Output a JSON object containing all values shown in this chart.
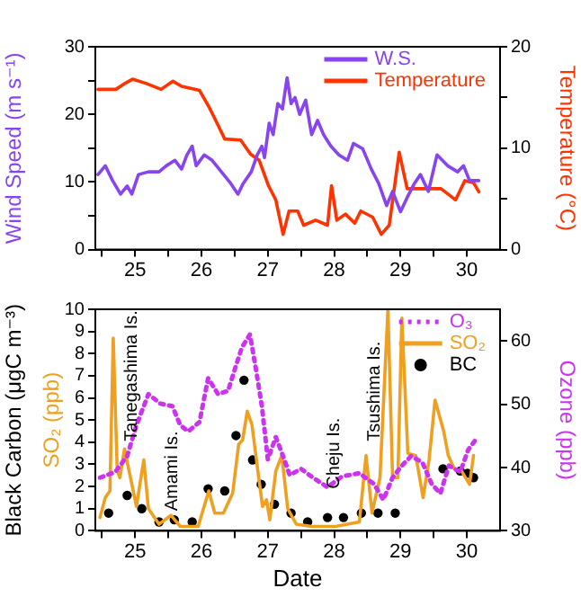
{
  "chart_data": [
    {
      "type": "line",
      "xlim": [
        24.4,
        30.5
      ],
      "xticks": [
        {
          "value": 24.5,
          "label": null
        },
        25,
        {
          "value": 25.5,
          "label": null
        },
        26,
        {
          "value": 26.5,
          "label": null
        },
        27,
        {
          "value": 27.5,
          "label": null
        },
        28,
        {
          "value": 28.5,
          "label": null
        },
        29,
        {
          "value": 29.5,
          "label": null
        },
        30
      ],
      "ylim": [
        0,
        30
      ],
      "yticks": [
        0,
        {
          "value": 5,
          "label": null
        },
        10,
        {
          "value": 15,
          "label": null
        },
        20,
        {
          "value": 25,
          "label": null
        },
        30
      ],
      "y2lim": [
        0,
        20
      ],
      "y2ticks": [
        0,
        {
          "value": 5,
          "label": null
        },
        10,
        {
          "value": 15,
          "label": null
        },
        20
      ],
      "ylabel": "Wind Speed (m s⁻¹)",
      "y2label": "Temperature (°C)",
      "legend": "top right",
      "series": [
        {
          "name": "W.S.",
          "color": "#8844ee",
          "x": [
            24.44,
            24.55,
            24.66,
            24.78,
            24.88,
            24.95,
            25.05,
            25.2,
            25.36,
            25.47,
            25.6,
            25.7,
            25.78,
            25.86,
            25.92,
            26.04,
            26.16,
            26.3,
            26.44,
            26.55,
            26.63,
            26.75,
            26.84,
            26.91,
            26.95,
            27.02,
            27.08,
            27.15,
            27.22,
            27.29,
            27.35,
            27.41,
            27.48,
            27.57,
            27.66,
            27.75,
            27.84,
            27.95,
            28.07,
            28.2,
            28.29,
            28.43,
            28.56,
            28.67,
            28.79,
            28.88,
            29.0,
            29.1,
            29.21,
            29.3,
            29.42,
            29.55,
            29.71,
            29.86,
            29.95,
            30.04,
            30.18
          ],
          "values": [
            11.1,
            12.4,
            10.2,
            8.2,
            9.4,
            8.2,
            11.1,
            11.5,
            11.5,
            12.4,
            13.2,
            11.9,
            14.0,
            15.3,
            12.4,
            14.0,
            13.2,
            11.5,
            9.8,
            8.2,
            9.8,
            11.5,
            14.0,
            15.3,
            13.6,
            18.7,
            17.0,
            21.6,
            20.8,
            25.4,
            21.6,
            22.5,
            20.0,
            22.1,
            17.0,
            19.1,
            17.0,
            15.3,
            14.0,
            13.2,
            15.7,
            14.9,
            11.9,
            9.8,
            6.5,
            8.6,
            5.6,
            7.7,
            9.8,
            11.1,
            8.6,
            14.0,
            12.4,
            11.5,
            12.4,
            10.2,
            10.2
          ]
        },
        {
          "name": "Temperature",
          "color": "#ff3300",
          "axis": "y2",
          "x": [
            24.44,
            24.71,
            24.85,
            24.96,
            25.16,
            25.39,
            25.57,
            25.7,
            25.97,
            26.11,
            26.24,
            26.35,
            26.59,
            26.74,
            26.87,
            27.01,
            27.12,
            27.23,
            27.32,
            27.45,
            27.54,
            27.72,
            27.9,
            27.96,
            28.04,
            28.17,
            28.31,
            28.4,
            28.58,
            28.71,
            28.83,
            28.98,
            29.1,
            29.2,
            29.61,
            29.83,
            29.97,
            30.1,
            30.18
          ],
          "values": [
            15.8,
            15.8,
            16.4,
            16.8,
            16.4,
            15.8,
            16.6,
            16.1,
            15.7,
            14.1,
            12.4,
            10.9,
            10.8,
            9.4,
            8.8,
            6.3,
            4.9,
            1.5,
            3.8,
            3.8,
            2.4,
            2.9,
            2.4,
            6.3,
            2.9,
            3.5,
            2.6,
            3.8,
            3.2,
            1.5,
            2.4,
            9.6,
            6.0,
            6.0,
            6.0,
            4.9,
            6.8,
            6.6,
            5.7
          ]
        }
      ]
    },
    {
      "type": "line",
      "xlim": [
        24.4,
        30.5
      ],
      "xticks": [
        {
          "value": 24.5,
          "label": null
        },
        25,
        {
          "value": 25.5,
          "label": null
        },
        26,
        {
          "value": 26.5,
          "label": null
        },
        27,
        {
          "value": 27.5,
          "label": null
        },
        28,
        {
          "value": 28.5,
          "label": null
        },
        29,
        {
          "value": 29.5,
          "label": null
        },
        30
      ],
      "ylim": [
        0,
        10
      ],
      "yticks": [
        0,
        1,
        2,
        3,
        4,
        5,
        6,
        7,
        8,
        9,
        10
      ],
      "y2lim": [
        30,
        65
      ],
      "y2ticks": [
        30,
        40,
        50,
        60
      ],
      "xlabel": "Date",
      "ylabel": "Black Carbon (μgC m⁻³)",
      "y2label": "Ozone (ppb)",
      "legend": "top right",
      "annotations": [
        "SO₂ (ppb)",
        "Tanegashima Is.",
        "Amami Is.",
        "Cheju Is.",
        "Tsushima Is."
      ],
      "series": [
        {
          "name": "O₃",
          "color": "#cc33ee",
          "axis": "y2",
          "line_style": "dotted",
          "x": [
            24.47,
            24.7,
            24.88,
            25.02,
            25.2,
            25.38,
            25.56,
            25.68,
            25.8,
            25.97,
            26.1,
            26.25,
            26.4,
            26.52,
            26.61,
            26.73,
            26.82,
            26.91,
            27.0,
            27.12,
            27.23,
            27.33,
            27.5,
            27.68,
            27.9,
            28.12,
            28.38,
            28.6,
            28.74,
            28.88,
            29.02,
            29.16,
            29.33,
            29.47,
            29.6,
            29.73,
            29.9,
            30.02,
            30.14
          ],
          "values": [
            38.4,
            39.3,
            41.8,
            46.7,
            51.6,
            50.1,
            49.7,
            46.7,
            45.7,
            47.2,
            54.1,
            51.6,
            52.1,
            56.1,
            59.0,
            61.0,
            55.6,
            49.7,
            41.3,
            44.8,
            41.8,
            38.8,
            39.8,
            38.4,
            36.9,
            38.6,
            39.1,
            37.4,
            34.9,
            38.4,
            40.3,
            41.8,
            40.8,
            37.4,
            35.9,
            40.3,
            39.3,
            42.8,
            44.5
          ]
        },
        {
          "name": "SO₂",
          "color": "#f0a020",
          "x": [
            24.47,
            24.55,
            24.62,
            24.67,
            24.73,
            24.77,
            24.84,
            24.93,
            25.02,
            25.13,
            25.2,
            25.36,
            25.54,
            25.68,
            25.95,
            26.04,
            26.11,
            26.2,
            26.33,
            26.47,
            26.56,
            26.62,
            26.69,
            26.76,
            26.85,
            26.92,
            26.98,
            27.03,
            27.12,
            27.21,
            27.3,
            27.43,
            27.66,
            28.02,
            28.38,
            28.48,
            28.57,
            28.69,
            28.81,
            28.88,
            28.96,
            29.02,
            29.11,
            29.23,
            29.34,
            29.43,
            29.52,
            29.65,
            29.72,
            29.81,
            29.92,
            30.04,
            30.1
          ],
          "values": [
            0.6,
            1.5,
            1.8,
            8.7,
            2.7,
            2.4,
            3.7,
            2.4,
            1.1,
            3.2,
            1.0,
            0.3,
            0.7,
            0.2,
            0.2,
            1.1,
            1.8,
            0.8,
            0.8,
            1.7,
            3.9,
            4.1,
            5.4,
            4.8,
            2.7,
            1.1,
            1.4,
            0.5,
            2.7,
            3.4,
            1.0,
            0.3,
            0.2,
            0.2,
            0.4,
            3.4,
            0.8,
            2.4,
            10.0,
            2.4,
            2.4,
            9.6,
            3.5,
            3.4,
            1.5,
            3.2,
            5.9,
            4.5,
            3.4,
            2.8,
            2.7,
            2.1,
            3.4
          ]
        },
        {
          "name": "BC",
          "type": "scatter",
          "marker": "circle",
          "color": "#000000",
          "x": [
            24.6,
            24.88,
            25.1,
            25.36,
            25.59,
            25.86,
            26.1,
            26.35,
            26.52,
            26.64,
            26.77,
            26.9,
            27.1,
            27.35,
            27.6,
            27.9,
            28.14,
            28.41,
            28.66,
            28.92,
            29.64,
            29.9,
            30.01,
            30.1
          ],
          "values": [
            0.8,
            1.6,
            1.0,
            0.4,
            0.5,
            0.4,
            1.9,
            1.8,
            4.3,
            6.8,
            3.2,
            2.1,
            1.2,
            0.8,
            0.4,
            0.6,
            0.6,
            0.8,
            0.8,
            0.8,
            2.8,
            2.7,
            2.6,
            2.4
          ]
        }
      ]
    }
  ]
}
